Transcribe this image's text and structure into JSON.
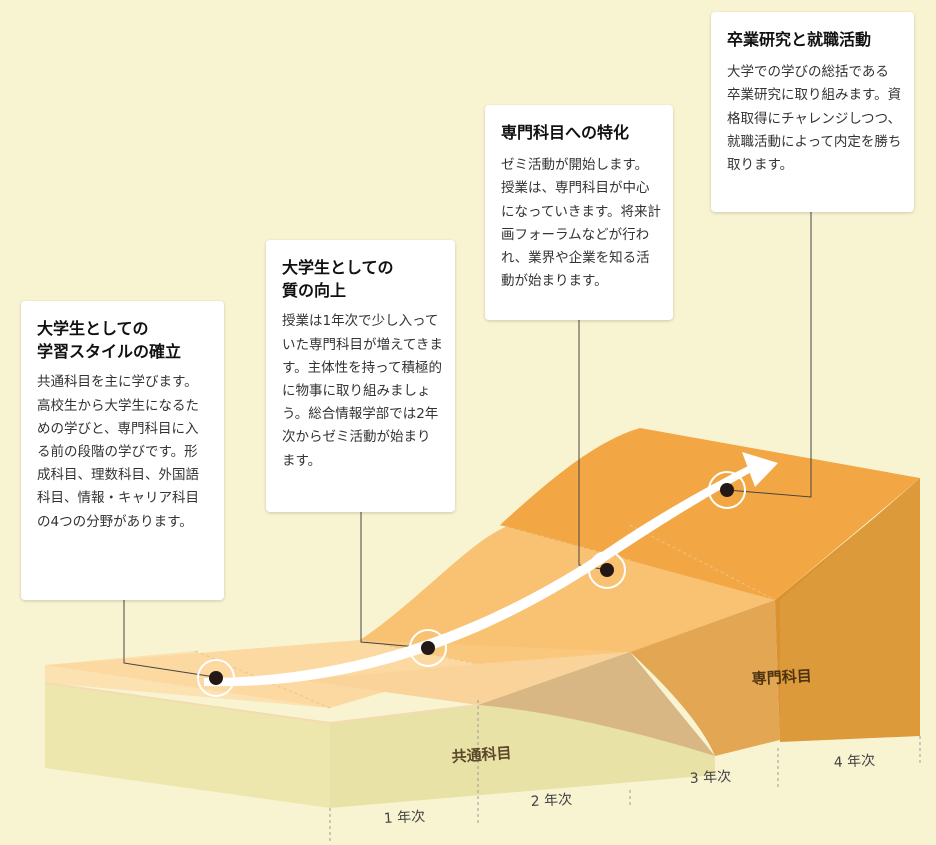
{
  "stages": [
    {
      "title_line1": "大学生としての",
      "title_line2": "学習スタイルの確立",
      "body": "共通科目を主に学びます。高校生から大学生になるための学びと、専門科目に入る前の段階の学びです。形成科目、理数科目、外国語科目、情報・キャリア科目の4つの分野があります。"
    },
    {
      "title_line1": "大学生としての",
      "title_line2": "質の向上",
      "body": "授業は1年次で少し入っていた専門科目が増えてきます。主体性を持って積極的に物事に取り組みましょう。総合情報学部では2年次からゼミ活動が始まります。"
    },
    {
      "title_line1": "専門科目への特化",
      "title_line2": "",
      "body": "ゼミ活動が開始します。授業は、専門科目が中心になっていきます。将来計画フォーラムなどが行われ、業界や企業を知る活動が始まります。"
    },
    {
      "title_line1": "卒業研究と就職活動",
      "title_line2": "",
      "body": "大学での学びの総括である卒業研究に取り組みます。資格取得にチャレンジしつつ、就職活動によって内定を勝ち取ります。"
    }
  ],
  "years": [
    "1 年次",
    "2 年次",
    "3 年次",
    "4 年次"
  ],
  "zones": {
    "common": "共通科目",
    "specialized": "専門科目"
  },
  "colors": {
    "background": "#f8f4d2",
    "light_peach": "#fbd79c",
    "mid_peach": "#f7b963",
    "orange": "#f3a642",
    "dark_orange": "#e29434",
    "common_zone": "#ece6a8"
  }
}
